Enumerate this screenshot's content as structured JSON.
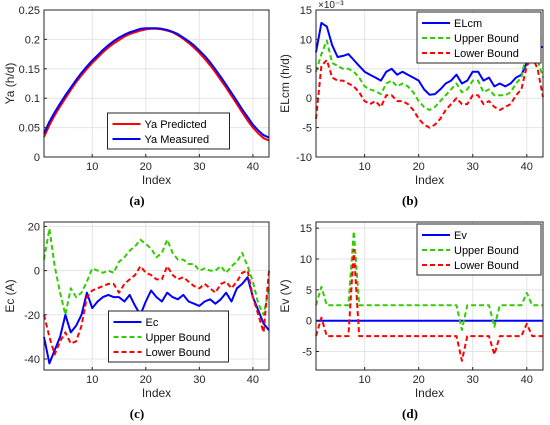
{
  "captions": [
    "(a)",
    "(b)",
    "(c)",
    "(d)"
  ],
  "chart_data": [
    {
      "type": "line",
      "panel": "(a)",
      "xlabel": "Index",
      "ylabel": "Ya (h/d)",
      "xlim": [
        1,
        43
      ],
      "ylim": [
        0,
        0.25
      ],
      "xticks": [
        10,
        20,
        30,
        40
      ],
      "yticks": [
        0,
        0.05,
        0.1,
        0.15,
        0.2,
        0.25
      ],
      "ytick_labels": [
        "0",
        "0.05",
        "0.1",
        "0.15",
        "0.2",
        "0.25"
      ],
      "grid": true,
      "legend_position": "bottom-center",
      "x": [
        1,
        2,
        3,
        4,
        5,
        6,
        7,
        8,
        9,
        10,
        11,
        12,
        13,
        14,
        15,
        16,
        17,
        18,
        19,
        20,
        21,
        22,
        23,
        24,
        25,
        26,
        27,
        28,
        29,
        30,
        31,
        32,
        33,
        34,
        35,
        36,
        37,
        38,
        39,
        40,
        41,
        42,
        43
      ],
      "series": [
        {
          "name": "Ya Predicted",
          "color": "#ff0000",
          "style": "solid",
          "values": [
            0.034,
            0.054,
            0.071,
            0.086,
            0.1,
            0.114,
            0.127,
            0.139,
            0.15,
            0.16,
            0.169,
            0.178,
            0.186,
            0.193,
            0.199,
            0.205,
            0.209,
            0.212,
            0.215,
            0.217,
            0.218,
            0.218,
            0.217,
            0.215,
            0.212,
            0.207,
            0.201,
            0.194,
            0.186,
            0.177,
            0.167,
            0.156,
            0.144,
            0.131,
            0.118,
            0.104,
            0.09,
            0.076,
            0.062,
            0.05,
            0.04,
            0.032,
            0.028
          ]
        },
        {
          "name": "Ya Measured",
          "color": "#0000ff",
          "style": "solid",
          "values": [
            0.04,
            0.06,
            0.076,
            0.091,
            0.105,
            0.118,
            0.131,
            0.143,
            0.154,
            0.164,
            0.173,
            0.182,
            0.19,
            0.197,
            0.203,
            0.208,
            0.212,
            0.215,
            0.218,
            0.219,
            0.219,
            0.219,
            0.218,
            0.216,
            0.213,
            0.209,
            0.203,
            0.197,
            0.19,
            0.181,
            0.172,
            0.161,
            0.149,
            0.136,
            0.123,
            0.109,
            0.095,
            0.081,
            0.068,
            0.055,
            0.045,
            0.037,
            0.033
          ]
        }
      ]
    },
    {
      "type": "line",
      "panel": "(b)",
      "xlabel": "Index",
      "ylabel": "ELcm (h/d)",
      "multiplier": "×10⁻³",
      "xlim": [
        1,
        43
      ],
      "ylim": [
        -10,
        15
      ],
      "xticks": [
        10,
        20,
        30,
        40
      ],
      "yticks": [
        -10,
        -5,
        0,
        5,
        10,
        15
      ],
      "grid": true,
      "legend_position": "top-right",
      "x": [
        1,
        2,
        3,
        4,
        5,
        6,
        7,
        8,
        9,
        10,
        11,
        12,
        13,
        14,
        15,
        16,
        17,
        18,
        19,
        20,
        21,
        22,
        23,
        24,
        25,
        26,
        27,
        28,
        29,
        30,
        31,
        32,
        33,
        34,
        35,
        36,
        37,
        38,
        39,
        40,
        41,
        42,
        43
      ],
      "series": [
        {
          "name": "ELcm",
          "color": "#0000ff",
          "style": "solid",
          "values": [
            7.8,
            12.8,
            12.2,
            9.0,
            7.0,
            7.2,
            7.5,
            6.5,
            5.5,
            4.5,
            4.0,
            3.5,
            3.0,
            4.5,
            5.0,
            4.0,
            4.5,
            4.0,
            3.5,
            3.0,
            1.5,
            0.6,
            0.7,
            1.5,
            2.5,
            3.0,
            4.0,
            2.5,
            3.0,
            4.5,
            4.5,
            3.0,
            3.5,
            2.0,
            2.5,
            2.0,
            2.5,
            3.5,
            4.0,
            6.0,
            8.0,
            8.7,
            8.7
          ]
        },
        {
          "name": "Upper Bound",
          "color": "#33cc00",
          "style": "dashed",
          "values": [
            4.5,
            7.5,
            9.8,
            6.0,
            5.5,
            5.0,
            5.0,
            4.5,
            3.5,
            2.0,
            1.5,
            1.2,
            0.7,
            2.5,
            3.0,
            2.0,
            2.5,
            2.0,
            1.0,
            -0.5,
            -1.5,
            -2.0,
            -1.5,
            -0.5,
            0.5,
            1.5,
            2.5,
            1.0,
            1.5,
            3.0,
            3.0,
            1.0,
            1.5,
            0.5,
            0.5,
            0.5,
            1.0,
            2.5,
            3.5,
            8.0,
            10.2,
            6.5,
            3.5
          ]
        },
        {
          "name": "Lower Bound",
          "color": "#ff0000",
          "style": "dashed",
          "values": [
            -3.5,
            5.5,
            6.5,
            3.5,
            3.0,
            3.0,
            2.5,
            2.0,
            1.0,
            -0.5,
            -1.0,
            -0.5,
            -1.5,
            0.5,
            0.5,
            -0.5,
            -0.5,
            -1.0,
            -2.0,
            -3.5,
            -4.5,
            -5.0,
            -4.5,
            -3.5,
            -2.0,
            -1.0,
            0.0,
            -1.0,
            -1.0,
            0.5,
            0.5,
            -1.0,
            -0.5,
            -1.5,
            -2.0,
            -1.5,
            -1.0,
            0.5,
            1.5,
            5.5,
            7.0,
            5.0,
            0.2
          ]
        }
      ]
    },
    {
      "type": "line",
      "panel": "(c)",
      "xlabel": "Index",
      "ylabel": "Ec (A)",
      "xlim": [
        1,
        43
      ],
      "ylim": [
        -45,
        22
      ],
      "xticks": [
        10,
        20,
        30,
        40
      ],
      "yticks": [
        -40,
        -20,
        0,
        20
      ],
      "grid": true,
      "legend_position": "bottom-center",
      "x": [
        1,
        2,
        3,
        4,
        5,
        6,
        7,
        8,
        9,
        10,
        11,
        12,
        13,
        14,
        15,
        16,
        17,
        18,
        19,
        20,
        21,
        22,
        23,
        24,
        25,
        26,
        27,
        28,
        29,
        30,
        31,
        32,
        33,
        34,
        35,
        36,
        37,
        38,
        39,
        40,
        41,
        42,
        43
      ],
      "series": [
        {
          "name": "Ec",
          "color": "#0000ff",
          "style": "solid",
          "values": [
            -30,
            -42,
            -36,
            -30,
            -20,
            -28,
            -25,
            -20,
            -10,
            -17,
            -14,
            -12,
            -11,
            -12,
            -12,
            -14,
            -11,
            -16,
            -20,
            -14,
            -9,
            -12,
            -14,
            -10,
            -12,
            -13,
            -11,
            -14,
            -15,
            -16,
            -14,
            -13,
            -15,
            -13,
            -10,
            -14,
            -8,
            -6,
            -3,
            -12,
            -18,
            -24,
            -27
          ]
        },
        {
          "name": "Upper Bound",
          "color": "#33cc00",
          "style": "dashed",
          "values": [
            5,
            19,
            2,
            -10,
            -20,
            -8,
            -12,
            -10,
            -5,
            1,
            0,
            -1,
            0,
            -1,
            4,
            6,
            9,
            11,
            14,
            12,
            10,
            6,
            8,
            14,
            8,
            5,
            5,
            3,
            3,
            0,
            1,
            0,
            0,
            2,
            -1,
            2,
            4,
            8,
            2,
            -5,
            -15,
            -20,
            -8
          ]
        },
        {
          "name": "Lower Bound",
          "color": "#ff0000",
          "style": "dashed",
          "values": [
            -20,
            -30,
            -38,
            -32,
            -28,
            -33,
            -32,
            -25,
            -12,
            -9,
            -8,
            -7,
            -6,
            -6,
            -10,
            -6,
            -4,
            -2,
            2,
            -1,
            -2,
            -4,
            -4,
            2,
            -2,
            -4,
            -3,
            -5,
            -7,
            -8,
            -6,
            -8,
            -10,
            -6,
            -5,
            -8,
            -5,
            -1,
            0,
            -12,
            -20,
            -28,
            0
          ]
        }
      ]
    },
    {
      "type": "line",
      "panel": "(d)",
      "xlabel": "Index",
      "ylabel": "Ev (V)",
      "xlim": [
        1,
        43
      ],
      "ylim": [
        -8,
        16
      ],
      "xticks": [
        10,
        20,
        30,
        40
      ],
      "yticks": [
        -5,
        0,
        5,
        10,
        15
      ],
      "grid": true,
      "legend_position": "top-right",
      "x": [
        1,
        2,
        3,
        4,
        5,
        6,
        7,
        8,
        9,
        10,
        11,
        12,
        13,
        14,
        15,
        16,
        17,
        18,
        19,
        20,
        21,
        22,
        23,
        24,
        25,
        26,
        27,
        28,
        29,
        30,
        31,
        32,
        33,
        34,
        35,
        36,
        37,
        38,
        39,
        40,
        41,
        42,
        43
      ],
      "series": [
        {
          "name": "Ev",
          "color": "#0000ff",
          "style": "solid",
          "values": [
            0,
            0,
            0,
            0,
            0,
            0,
            0,
            0,
            0,
            0,
            0,
            0,
            0,
            0,
            0,
            0,
            0,
            0,
            0,
            0,
            0,
            0,
            0,
            0,
            0,
            0,
            0,
            0,
            0,
            0,
            0,
            0,
            0,
            0,
            0,
            0,
            0,
            0,
            0,
            0,
            0,
            0,
            0
          ]
        },
        {
          "name": "Upper Bound",
          "color": "#33cc00",
          "style": "dashed",
          "values": [
            2.5,
            5.5,
            2.5,
            2.5,
            2.5,
            2.5,
            2.5,
            14.5,
            2.5,
            2.5,
            2.5,
            2.5,
            2.5,
            2.5,
            2.5,
            2.5,
            2.5,
            2.5,
            2.5,
            2.5,
            2.5,
            2.5,
            2.5,
            2.5,
            2.5,
            2.5,
            2.5,
            -1.5,
            2.5,
            2.5,
            2.5,
            2.5,
            2.5,
            -1.0,
            2.5,
            2.5,
            2.5,
            2.5,
            2.5,
            4.5,
            2.5,
            2.5,
            2.5
          ]
        },
        {
          "name": "Lower Bound",
          "color": "#ff0000",
          "style": "dashed",
          "values": [
            -2.5,
            0.5,
            -2.5,
            -2.5,
            -2.5,
            -2.5,
            -2.5,
            11.5,
            -2.5,
            -2.5,
            -2.5,
            -2.5,
            -2.5,
            -2.5,
            -2.5,
            -2.5,
            -2.5,
            -2.5,
            -2.5,
            -2.5,
            -2.5,
            -2.5,
            -2.5,
            -2.5,
            -2.5,
            -2.5,
            -2.5,
            -6.5,
            -2.5,
            -2.5,
            -2.5,
            -2.5,
            -2.5,
            -5.5,
            -2.5,
            -2.5,
            -2.5,
            -2.5,
            -2.5,
            -0.5,
            -2.5,
            -2.5,
            -2.5
          ]
        }
      ]
    }
  ]
}
